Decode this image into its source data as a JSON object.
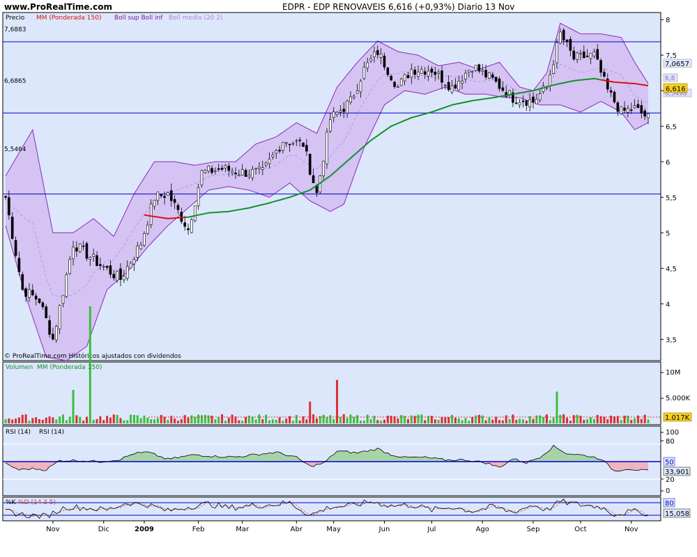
{
  "header": {
    "site": "www.ProRealTime.com",
    "title": "EDPR - EDP RENOVAVEIS     6,616 (+0,93%)   Diario  13 Nov"
  },
  "main_panel": {
    "legend_precio": "Precio",
    "legend_mm": "MM (Ponderada 150)",
    "legend_boll": "Boll sup Boll inf",
    "legend_boll_media": "Boll media (20 2)",
    "copyright": "© ProRealTime.com  Históricos ajustados con dividendos",
    "hline_labels": [
      "7,6883",
      "6,6865",
      "5,5464"
    ],
    "y_ticks": [
      "8",
      "7,5",
      "7",
      "6,5",
      "6",
      "5,5",
      "5",
      "4,5",
      "4",
      "3,5"
    ],
    "badge_mm": "7,0657",
    "badge_mid1": "6,8",
    "badge_last": "6,616",
    "badge_lower": "6,5498"
  },
  "volume_panel": {
    "legend_volumen": "Volumen",
    "legend_mm": "MM (Ponderada 150)",
    "y_ticks": [
      "10M",
      "5.000K"
    ],
    "badge": "1.017K"
  },
  "rsi_panel": {
    "legend_1": "RSI (14)",
    "legend_2": "RSI (14)",
    "y_ticks": [
      "100",
      "80",
      "20",
      "0"
    ],
    "badge_mid": "50",
    "badge_value": "33,901"
  },
  "stoch_panel": {
    "legend_k": "%K",
    "legend_d": "%D (14 3 5)",
    "badge_80": "80",
    "badge_value": "15,058"
  },
  "x_axis": {
    "labels": [
      "Nov",
      "Dic",
      "2009",
      "Feb",
      "Mar",
      "Abr",
      "May",
      "Jun",
      "Jul",
      "Ago",
      "Sep",
      "Oct",
      "Nov"
    ]
  },
  "colors": {
    "panel_bg": "#dde7fb",
    "band_fill": "#d4c3f3",
    "band_edge": "#8b2ab8",
    "hline": "#0000cc",
    "mm_green": "#12902a",
    "mm_red": "#d91010",
    "vol_up": "#38c038",
    "vol_down": "#d83030",
    "rsi_up_fill": "#a6d4a6",
    "rsi_down_fill": "#eeb4c0"
  },
  "chart_data": {
    "type": "candlestick",
    "ylim": [
      3.2,
      8.1
    ],
    "horizontal_lines": [
      7.6883,
      6.6865,
      5.5464
    ],
    "last_price": 6.616,
    "change_pct": 0.93,
    "mm150_last": 7.0657,
    "anchors": {
      "price": [
        [
          0,
          5.5
        ],
        [
          5,
          4.2
        ],
        [
          10,
          4.05
        ],
        [
          14,
          3.5
        ],
        [
          20,
          4.85
        ],
        [
          28,
          4.55
        ],
        [
          34,
          4.35
        ],
        [
          40,
          4.85
        ],
        [
          44,
          5.5
        ],
        [
          48,
          5.55
        ],
        [
          54,
          5.05
        ],
        [
          58,
          5.85
        ],
        [
          64,
          5.9
        ],
        [
          70,
          5.85
        ],
        [
          76,
          5.85
        ],
        [
          82,
          6.3
        ],
        [
          88,
          6.25
        ],
        [
          92,
          5.55
        ],
        [
          96,
          6.6
        ],
        [
          102,
          6.85
        ],
        [
          106,
          7.3
        ],
        [
          110,
          7.55
        ],
        [
          116,
          7.05
        ],
        [
          120,
          7.3
        ],
        [
          126,
          7.3
        ],
        [
          132,
          7.05
        ],
        [
          138,
          7.35
        ],
        [
          144,
          7.15
        ],
        [
          150,
          6.9
        ],
        [
          156,
          6.85
        ],
        [
          160,
          7.05
        ],
        [
          164,
          7.8
        ],
        [
          168,
          7.45
        ],
        [
          174,
          7.5
        ],
        [
          178,
          7.0
        ],
        [
          182,
          6.7
        ],
        [
          186,
          6.75
        ],
        [
          190,
          6.616
        ]
      ],
      "boll_upper": [
        [
          0,
          5.8
        ],
        [
          8,
          6.45
        ],
        [
          14,
          5.0
        ],
        [
          20,
          5.0
        ],
        [
          26,
          5.2
        ],
        [
          32,
          4.95
        ],
        [
          38,
          5.55
        ],
        [
          44,
          6.0
        ],
        [
          50,
          6.0
        ],
        [
          56,
          5.95
        ],
        [
          62,
          6.0
        ],
        [
          68,
          6.0
        ],
        [
          74,
          6.25
        ],
        [
          80,
          6.35
        ],
        [
          86,
          6.55
        ],
        [
          92,
          6.4
        ],
        [
          98,
          7.05
        ],
        [
          104,
          7.4
        ],
        [
          110,
          7.7
        ],
        [
          116,
          7.55
        ],
        [
          122,
          7.5
        ],
        [
          128,
          7.35
        ],
        [
          134,
          7.4
        ],
        [
          140,
          7.3
        ],
        [
          146,
          7.4
        ],
        [
          152,
          7.05
        ],
        [
          156,
          7.0
        ],
        [
          160,
          7.25
        ],
        [
          164,
          7.95
        ],
        [
          170,
          7.8
        ],
        [
          176,
          7.8
        ],
        [
          182,
          7.75
        ],
        [
          186,
          7.4
        ],
        [
          190,
          7.1
        ]
      ],
      "boll_lower": [
        [
          0,
          5.1
        ],
        [
          6,
          4.1
        ],
        [
          12,
          3.25
        ],
        [
          18,
          3.2
        ],
        [
          24,
          3.4
        ],
        [
          30,
          4.2
        ],
        [
          36,
          4.45
        ],
        [
          42,
          4.8
        ],
        [
          48,
          5.1
        ],
        [
          54,
          5.35
        ],
        [
          60,
          5.6
        ],
        [
          66,
          5.65
        ],
        [
          72,
          5.6
        ],
        [
          78,
          5.5
        ],
        [
          84,
          5.7
        ],
        [
          90,
          5.45
        ],
        [
          96,
          5.3
        ],
        [
          100,
          5.4
        ],
        [
          106,
          6.2
        ],
        [
          112,
          6.8
        ],
        [
          118,
          7.0
        ],
        [
          124,
          6.95
        ],
        [
          130,
          7.05
        ],
        [
          136,
          6.95
        ],
        [
          142,
          6.95
        ],
        [
          148,
          6.9
        ],
        [
          152,
          6.9
        ],
        [
          158,
          6.8
        ],
        [
          164,
          6.8
        ],
        [
          170,
          6.7
        ],
        [
          176,
          6.85
        ],
        [
          182,
          6.7
        ],
        [
          186,
          6.45
        ],
        [
          190,
          6.55
        ]
      ],
      "mm150": [
        [
          41,
          5.25
        ],
        [
          48,
          5.2
        ],
        [
          54,
          5.22
        ],
        [
          60,
          5.28
        ],
        [
          66,
          5.3
        ],
        [
          72,
          5.35
        ],
        [
          78,
          5.42
        ],
        [
          84,
          5.5
        ],
        [
          90,
          5.6
        ],
        [
          96,
          5.8
        ],
        [
          102,
          6.05
        ],
        [
          108,
          6.3
        ],
        [
          114,
          6.5
        ],
        [
          120,
          6.62
        ],
        [
          126,
          6.7
        ],
        [
          132,
          6.8
        ],
        [
          138,
          6.86
        ],
        [
          144,
          6.9
        ],
        [
          150,
          6.95
        ],
        [
          156,
          7.0
        ],
        [
          162,
          7.08
        ],
        [
          168,
          7.14
        ],
        [
          174,
          7.17
        ],
        [
          180,
          7.12
        ],
        [
          186,
          7.1
        ],
        [
          190,
          7.07
        ]
      ],
      "rsi": [
        [
          0,
          46
        ],
        [
          4,
          36
        ],
        [
          8,
          38
        ],
        [
          12,
          36
        ],
        [
          16,
          52
        ],
        [
          22,
          52
        ],
        [
          28,
          50
        ],
        [
          34,
          54
        ],
        [
          38,
          64
        ],
        [
          42,
          66
        ],
        [
          48,
          54
        ],
        [
          52,
          58
        ],
        [
          56,
          62
        ],
        [
          62,
          59
        ],
        [
          68,
          58
        ],
        [
          74,
          62
        ],
        [
          80,
          66
        ],
        [
          86,
          57
        ],
        [
          90,
          42
        ],
        [
          94,
          47
        ],
        [
          98,
          68
        ],
        [
          104,
          65
        ],
        [
          110,
          72
        ],
        [
          114,
          62
        ],
        [
          118,
          57
        ],
        [
          124,
          57
        ],
        [
          130,
          53
        ],
        [
          136,
          53
        ],
        [
          142,
          48
        ],
        [
          146,
          40
        ],
        [
          150,
          55
        ],
        [
          154,
          48
        ],
        [
          158,
          58
        ],
        [
          162,
          76
        ],
        [
          166,
          64
        ],
        [
          172,
          60
        ],
        [
          176,
          55
        ],
        [
          180,
          34
        ],
        [
          184,
          38
        ],
        [
          188,
          35
        ],
        [
          190,
          34
        ]
      ],
      "stoch_k": [
        [
          0,
          40
        ],
        [
          6,
          20
        ],
        [
          12,
          15
        ],
        [
          18,
          60
        ],
        [
          24,
          55
        ],
        [
          30,
          45
        ],
        [
          36,
          80
        ],
        [
          42,
          70
        ],
        [
          48,
          40
        ],
        [
          54,
          60
        ],
        [
          60,
          75
        ],
        [
          66,
          55
        ],
        [
          72,
          65
        ],
        [
          78,
          70
        ],
        [
          84,
          80
        ],
        [
          90,
          20
        ],
        [
          96,
          60
        ],
        [
          102,
          65
        ],
        [
          108,
          85
        ],
        [
          114,
          65
        ],
        [
          120,
          70
        ],
        [
          126,
          45
        ],
        [
          132,
          60
        ],
        [
          138,
          40
        ],
        [
          144,
          60
        ],
        [
          150,
          35
        ],
        [
          156,
          70
        ],
        [
          160,
          45
        ],
        [
          164,
          85
        ],
        [
          170,
          70
        ],
        [
          176,
          60
        ],
        [
          180,
          25
        ],
        [
          184,
          35
        ],
        [
          188,
          40
        ],
        [
          190,
          15
        ]
      ]
    },
    "volume_spikes": [
      [
        20,
        20
      ],
      [
        25,
        70
      ],
      [
        90,
        13
      ],
      [
        98,
        26
      ],
      [
        163,
        19
      ]
    ],
    "x_labels": [
      "Nov",
      "Dic",
      "2009",
      "Feb",
      "Mar",
      "Abr",
      "May",
      "Jun",
      "Jul",
      "Ago",
      "Sep",
      "Oct",
      "Nov"
    ],
    "x_label_positions": [
      14,
      29,
      41,
      57,
      70,
      86,
      97,
      112,
      126,
      141,
      156,
      170,
      185
    ]
  }
}
